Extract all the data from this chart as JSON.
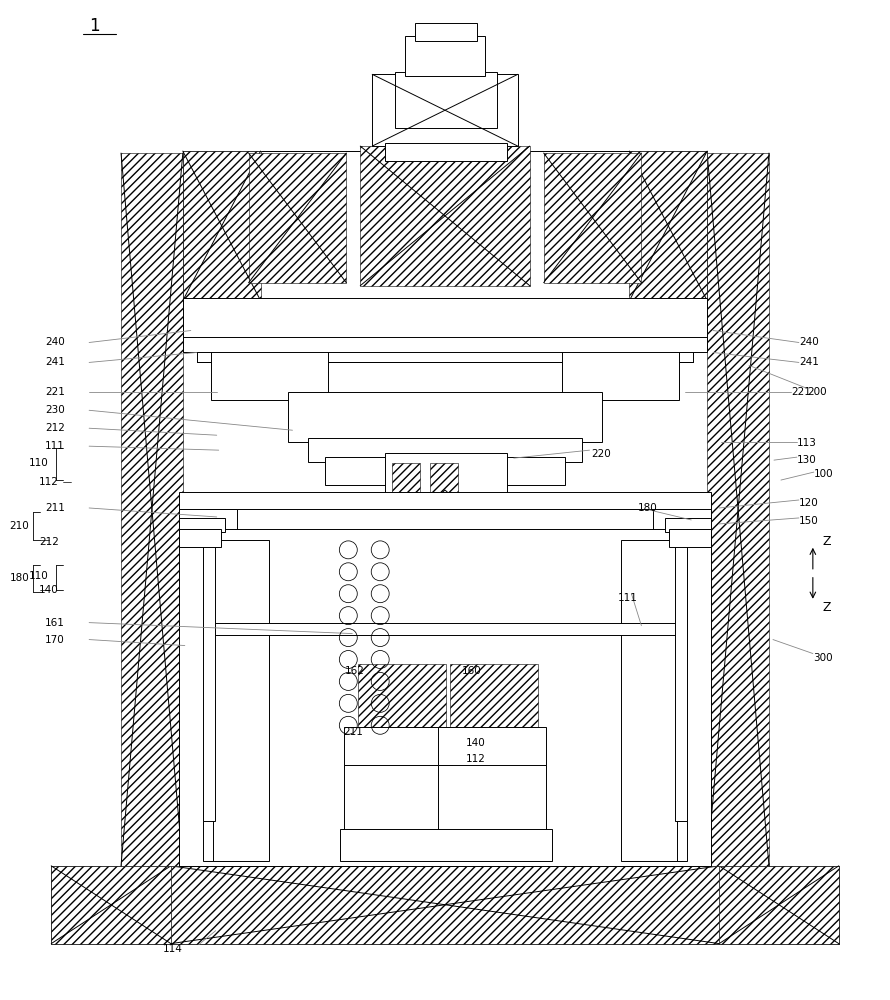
{
  "bg": "#ffffff",
  "lc": "#000000",
  "ldr": "#888888",
  "lw": 0.7,
  "fs": 7.5,
  "fig_w": 8.9,
  "fig_h": 10.0
}
